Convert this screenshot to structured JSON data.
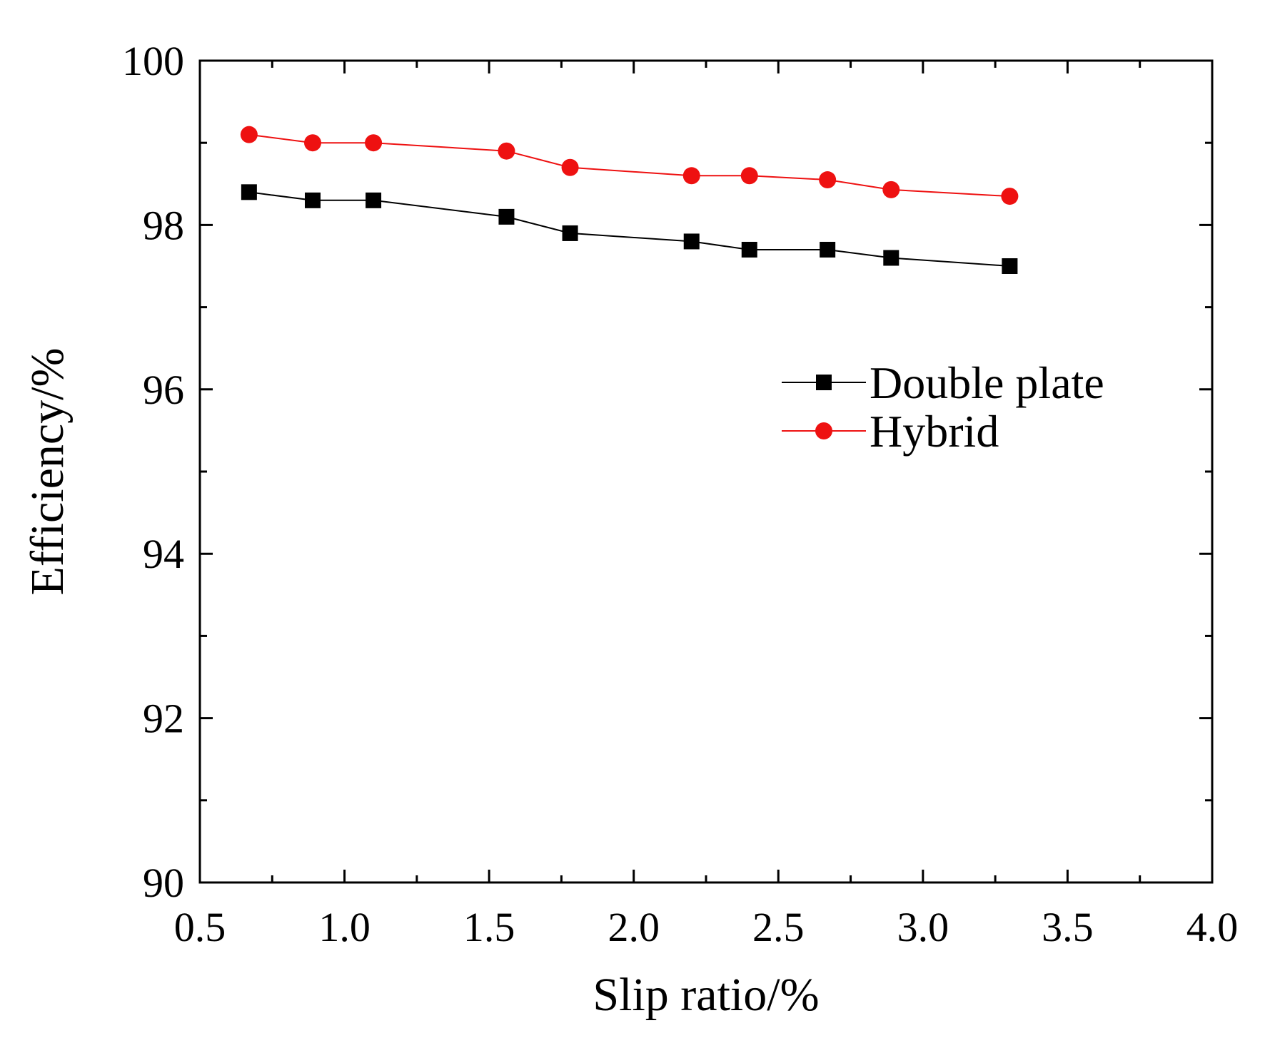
{
  "chart_data": {
    "type": "line",
    "title": "",
    "xlabel": "Slip ratio/%",
    "ylabel": "Efficiency/%",
    "xlim": [
      0.5,
      4.0
    ],
    "ylim": [
      90,
      100
    ],
    "xticks": [
      0.5,
      1.0,
      1.5,
      2.0,
      2.5,
      3.0,
      3.5,
      4.0
    ],
    "xtick_labels": [
      "0.5",
      "1.0",
      "1.5",
      "2.0",
      "2.5",
      "3.0",
      "3.5",
      "4.0"
    ],
    "xminor": [
      0.75,
      1.25,
      1.75,
      2.25,
      2.75,
      3.25,
      3.75
    ],
    "yticks": [
      90,
      92,
      94,
      96,
      98,
      100
    ],
    "ytick_labels": [
      "90",
      "92",
      "94",
      "96",
      "98",
      "100"
    ],
    "yminor": [
      91,
      93,
      95,
      97,
      99
    ],
    "grid": false,
    "legend_position": "center-right",
    "x": [
      0.67,
      0.89,
      1.1,
      1.56,
      1.78,
      2.2,
      2.4,
      2.67,
      2.89,
      3.3
    ],
    "series": [
      {
        "name": "Double plate",
        "marker": "square",
        "color": "#000000",
        "values": [
          98.4,
          98.3,
          98.3,
          98.1,
          97.9,
          97.8,
          97.7,
          97.7,
          97.6,
          97.5
        ]
      },
      {
        "name": "Hybrid",
        "marker": "circle",
        "color": "#ee1111",
        "values": [
          99.1,
          99.0,
          99.0,
          98.9,
          98.7,
          98.6,
          98.6,
          98.55,
          98.43,
          98.35
        ]
      }
    ]
  }
}
